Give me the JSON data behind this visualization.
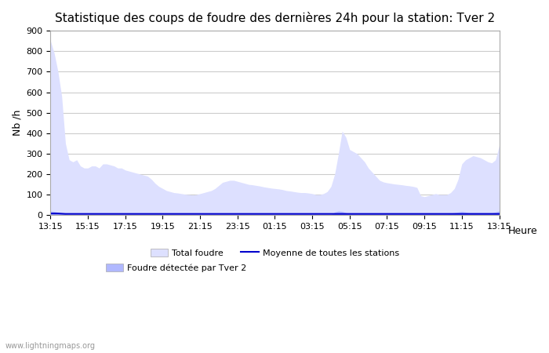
{
  "title": "Statistique des coups de foudre des dernières 24h pour la station: Tver 2",
  "ylabel": "Nb /h",
  "xlabel": "Heure",
  "watermark": "www.lightningmaps.org",
  "ylim": [
    0,
    900
  ],
  "yticks": [
    0,
    100,
    200,
    300,
    400,
    500,
    600,
    700,
    800,
    900
  ],
  "xtick_labels": [
    "13:15",
    "15:15",
    "17:15",
    "19:15",
    "21:15",
    "23:15",
    "01:15",
    "03:15",
    "05:15",
    "07:15",
    "09:15",
    "11:15",
    "13:15"
  ],
  "bg_color": "#ffffff",
  "grid_color": "#cccccc",
  "total_fill_color": "#dde0ff",
  "detected_fill_color": "#b0b8ff",
  "line_color": "#0000cc",
  "total_y": [
    850,
    790,
    700,
    580,
    350,
    270,
    260,
    270,
    240,
    230,
    230,
    240,
    240,
    230,
    250,
    250,
    245,
    240,
    230,
    230,
    220,
    215,
    210,
    205,
    200,
    195,
    190,
    175,
    155,
    140,
    130,
    120,
    115,
    110,
    108,
    105,
    102,
    100,
    98,
    100,
    105,
    110,
    115,
    120,
    130,
    145,
    160,
    165,
    170,
    170,
    165,
    160,
    155,
    150,
    148,
    145,
    142,
    138,
    135,
    132,
    130,
    128,
    125,
    120,
    118,
    115,
    112,
    110,
    110,
    108,
    105,
    100,
    100,
    105,
    115,
    140,
    200,
    300,
    410,
    380,
    320,
    310,
    300,
    280,
    260,
    230,
    210,
    190,
    170,
    162,
    158,
    155,
    152,
    150,
    148,
    145,
    143,
    140,
    135,
    95,
    90,
    95,
    100,
    105,
    100,
    100,
    100,
    110,
    130,
    175,
    250,
    270,
    280,
    290,
    285,
    280,
    270,
    260,
    255,
    270,
    340
  ],
  "detected_y": [
    20,
    18,
    14,
    10,
    5,
    3,
    2,
    2,
    2,
    2,
    2,
    2,
    2,
    2,
    2,
    2,
    2,
    2,
    2,
    2,
    2,
    2,
    2,
    2,
    2,
    2,
    2,
    2,
    2,
    2,
    2,
    2,
    2,
    2,
    2,
    2,
    2,
    2,
    2,
    2,
    2,
    2,
    2,
    2,
    2,
    2,
    2,
    2,
    2,
    2,
    2,
    2,
    2,
    2,
    2,
    2,
    2,
    2,
    2,
    2,
    2,
    2,
    2,
    2,
    2,
    2,
    2,
    2,
    2,
    2,
    2,
    2,
    2,
    2,
    2,
    2,
    15,
    20,
    18,
    12,
    8,
    5,
    5,
    5,
    5,
    5,
    5,
    5,
    5,
    5,
    5,
    5,
    5,
    5,
    5,
    5,
    5,
    5,
    5,
    5,
    5,
    5,
    5,
    5,
    5,
    5,
    5,
    10,
    12,
    15,
    18,
    15,
    12,
    12,
    12,
    12,
    12,
    12,
    12,
    15,
    20
  ],
  "mean_y": [
    8,
    8,
    8,
    7,
    6,
    6,
    6,
    6,
    6,
    6,
    6,
    6,
    6,
    6,
    6,
    6,
    6,
    6,
    6,
    6,
    6,
    6,
    6,
    6,
    6,
    6,
    6,
    6,
    6,
    6,
    6,
    6,
    6,
    6,
    6,
    6,
    6,
    6,
    6,
    6,
    6,
    6,
    6,
    6,
    6,
    6,
    6,
    6,
    6,
    6,
    6,
    6,
    6,
    6,
    6,
    6,
    6,
    6,
    6,
    6,
    6,
    6,
    6,
    6,
    6,
    6,
    6,
    6,
    6,
    6,
    6,
    6,
    6,
    6,
    6,
    6,
    6,
    6,
    6,
    6,
    6,
    6,
    6,
    6,
    6,
    6,
    6,
    6,
    6,
    6,
    6,
    6,
    6,
    6,
    6,
    6,
    6,
    6,
    6,
    6,
    6,
    6,
    6,
    6,
    6,
    6,
    6,
    6,
    6,
    6,
    6,
    6,
    6,
    6,
    6,
    6,
    6,
    6,
    6,
    6,
    6
  ],
  "legend_total_label": "Total foudre",
  "legend_detected_label": "Foudre détectée par Tver 2",
  "legend_mean_label": "Moyenne de toutes les stations",
  "title_fontsize": 11,
  "axis_fontsize": 9,
  "tick_fontsize": 8
}
